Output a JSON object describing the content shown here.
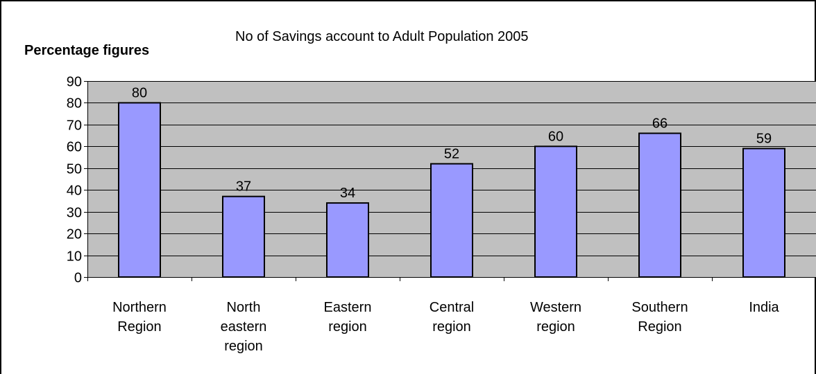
{
  "chart_data": {
    "type": "bar",
    "title": "No of Savings account to Adult Population 2005",
    "ylabel": "Percentage figures",
    "xlabel": "",
    "categories": [
      [
        "Northern",
        "Region"
      ],
      [
        "North",
        "eastern",
        "region"
      ],
      [
        "Eastern",
        "region"
      ],
      [
        "Central",
        "region"
      ],
      [
        "Western",
        "region"
      ],
      [
        "Southern",
        "Region"
      ],
      [
        "India"
      ]
    ],
    "values": [
      80,
      37,
      34,
      52,
      60,
      66,
      59
    ],
    "data_labels": [
      "80",
      "37",
      "34",
      "52",
      "60",
      "66",
      "59"
    ],
    "ylim": [
      0,
      90
    ],
    "yticks": [
      "0",
      "10",
      "20",
      "30",
      "40",
      "50",
      "60",
      "70",
      "80",
      "90"
    ],
    "grid": true,
    "legend": "none",
    "colors": {
      "bar_fill": "#9999FF",
      "bar_stroke": "#000000",
      "plot_background": "#C0C0C0",
      "gridline": "#000000"
    }
  }
}
